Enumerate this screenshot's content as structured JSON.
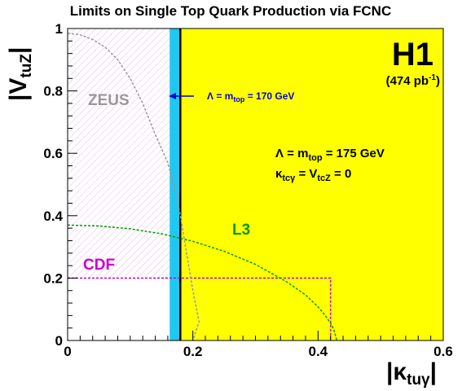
{
  "chart_data": {
    "type": "area",
    "title": "Limits on Single Top Quark Production via FCNC",
    "xlabel": "|κ_tuγ|",
    "ylabel": "|V_tuZ|",
    "xlim": [
      0,
      0.6
    ],
    "ylim": [
      0,
      1
    ],
    "x_ticks": [
      0,
      0.2,
      0.4,
      0.6
    ],
    "y_ticks": [
      0,
      0.2,
      0.4,
      0.6,
      0.8,
      1
    ],
    "x_tick_labels": [
      "0",
      "0.2",
      "0.4",
      "0.6"
    ],
    "y_tick_labels": [
      "0",
      "0.2",
      "0.4",
      "0.6",
      "0.8",
      "1"
    ],
    "experiment": "H1",
    "luminosity": {
      "prefix": "(474 pb",
      "sup": "-1",
      "suffix": ")"
    },
    "conditions": {
      "lambda_175": "Λ = m",
      "lambda_175_sub": "top",
      "lambda_175_val": " = 175 GeV",
      "kappa": "κ",
      "kappa_sub": "tcγ",
      "kappa_mid": " = V",
      "kappa_sub2": "tcZ",
      "kappa_end": " = 0"
    },
    "arrow_label": {
      "prefix": "Λ = m",
      "sub": "top",
      "suffix": " = 170 GeV"
    },
    "series": [
      {
        "name": "H1",
        "kind": "excluded-region",
        "x_min": 0.18,
        "x_max": 0.6,
        "color": "#ffff00"
      },
      {
        "name": "Λ = m_top = 170 GeV",
        "kind": "band",
        "x_min": 0.163,
        "x_max": 0.18,
        "color": "#1ec8f0"
      },
      {
        "name": "ZEUS",
        "kind": "curve",
        "color": "#999999",
        "x": [
          0.0,
          0.02,
          0.04,
          0.06,
          0.08,
          0.1,
          0.12,
          0.14,
          0.16,
          0.17,
          0.18,
          0.19,
          0.2,
          0.21,
          0.2
        ],
        "y": [
          0.985,
          0.98,
          0.965,
          0.94,
          0.9,
          0.84,
          0.76,
          0.66,
          0.57,
          0.5,
          0.4,
          0.28,
          0.16,
          0.06,
          0.0
        ]
      },
      {
        "name": "L3",
        "kind": "curve",
        "color": "#009900",
        "x": [
          0.0,
          0.05,
          0.1,
          0.15,
          0.2,
          0.25,
          0.3,
          0.35,
          0.38,
          0.4,
          0.41,
          0.42,
          0.425,
          0.43
        ],
        "y": [
          0.37,
          0.367,
          0.358,
          0.342,
          0.318,
          0.286,
          0.244,
          0.188,
          0.146,
          0.108,
          0.084,
          0.056,
          0.036,
          0.0
        ]
      },
      {
        "name": "CDF",
        "kind": "box",
        "color": "#cc00cc",
        "x_max": 0.42,
        "y_max": 0.2
      }
    ],
    "hatched_region": {
      "x_min": 0,
      "x_max": 0.163,
      "y_min": 0.2,
      "y_max": 1
    }
  }
}
